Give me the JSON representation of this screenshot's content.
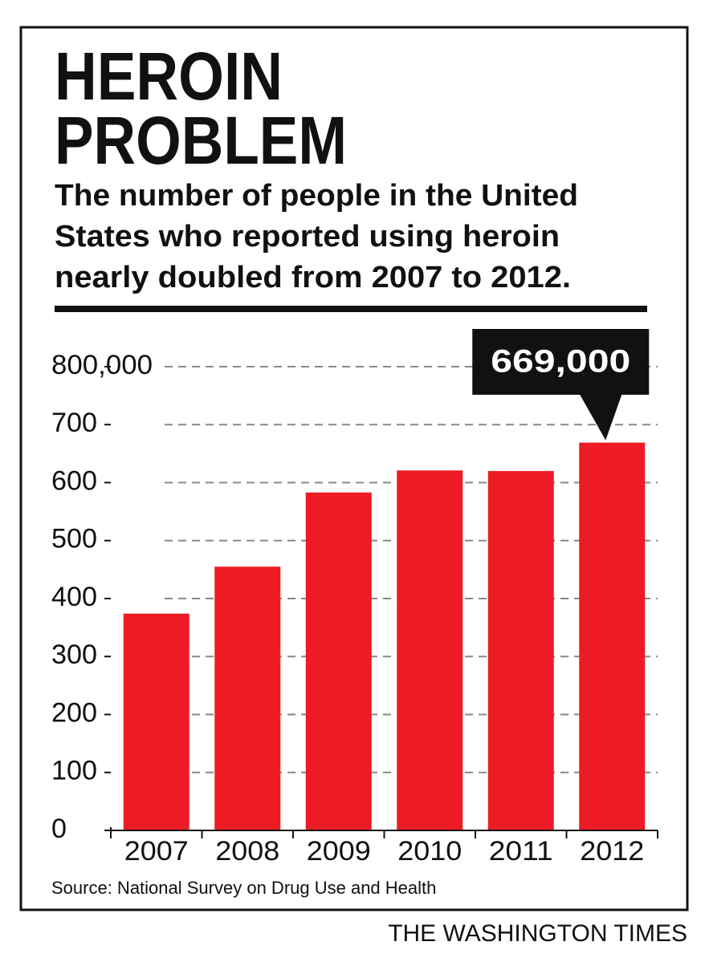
{
  "chart_data": {
    "type": "bar",
    "title_lines": [
      "HEROIN",
      "PROBLEM"
    ],
    "subtitle_lines": [
      "The number of people in the United",
      "States who reported using heroin",
      "nearly doubled from 2007 to 2012."
    ],
    "categories": [
      "2007",
      "2008",
      "2009",
      "2010",
      "2011",
      "2012"
    ],
    "values": [
      374000,
      455000,
      583000,
      621000,
      620000,
      669000
    ],
    "value_labels": [
      null,
      null,
      null,
      null,
      null,
      "669,000"
    ],
    "color": "#ed1c24",
    "ylim": [
      0,
      800000
    ],
    "yticks": [
      0,
      {
        "value": 100000,
        "label": "100"
      },
      {
        "value": 200000,
        "label": "200"
      },
      {
        "value": 300000,
        "label": "300"
      },
      {
        "value": 400000,
        "label": "400"
      },
      {
        "value": 500000,
        "label": "500"
      },
      {
        "value": 600000,
        "label": "600"
      },
      {
        "value": 700000,
        "label": "700"
      },
      {
        "value": 800000,
        "label": "800,000"
      }
    ],
    "grid": true,
    "source": "Source: National Survey on Drug Use and Health",
    "credit": "THE WASHINGTON TIMES"
  }
}
